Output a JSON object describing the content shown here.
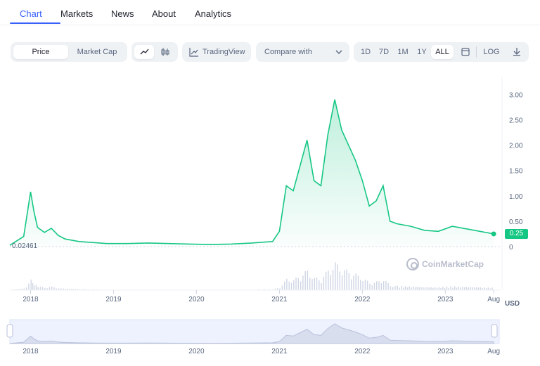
{
  "nav": {
    "tabs": [
      {
        "label": "Chart"
      },
      {
        "label": "Markets"
      },
      {
        "label": "News"
      },
      {
        "label": "About"
      },
      {
        "label": "Analytics"
      }
    ],
    "active": "Chart"
  },
  "toolbar": {
    "type_toggle": [
      "Price",
      "Market Cap"
    ],
    "type_active": "Price",
    "chart_style_icons": [
      "line-chart-icon",
      "candlestick-icon"
    ],
    "tradingview_label": "TradingView",
    "compare_label": "Compare with",
    "ranges": [
      "1D",
      "7D",
      "1M",
      "1Y",
      "ALL"
    ],
    "range_active": "ALL",
    "log_label": "LOG"
  },
  "chart_data": {
    "type": "area",
    "x": [
      "2017-10",
      "2017-12",
      "2018-01",
      "2018-01",
      "2018-02",
      "2018-03",
      "2018-04",
      "2018-05",
      "2018-06",
      "2018-08",
      "2018-10",
      "2018-12",
      "2019-03",
      "2019-06",
      "2019-09",
      "2019-12",
      "2020-03",
      "2020-06",
      "2020-09",
      "2020-12",
      "2021-01",
      "2021-02",
      "2021-03",
      "2021-04",
      "2021-05",
      "2021-06",
      "2021-07",
      "2021-08",
      "2021-09",
      "2021-10",
      "2021-11",
      "2021-12",
      "2022-01",
      "2022-02",
      "2022-03",
      "2022-04",
      "2022-05",
      "2022-06",
      "2022-08",
      "2022-10",
      "2022-12",
      "2023-02",
      "2023-04",
      "2023-06",
      "2023-08"
    ],
    "values": [
      0.02461,
      0.2,
      1.08,
      0.7,
      0.38,
      0.28,
      0.36,
      0.22,
      0.15,
      0.1,
      0.08,
      0.06,
      0.06,
      0.07,
      0.06,
      0.05,
      0.04,
      0.05,
      0.07,
      0.1,
      0.3,
      1.2,
      1.1,
      1.6,
      2.1,
      1.3,
      1.2,
      2.2,
      2.9,
      2.3,
      2.0,
      1.7,
      1.3,
      0.8,
      0.9,
      1.2,
      0.5,
      0.45,
      0.4,
      0.32,
      0.3,
      0.4,
      0.35,
      0.3,
      0.25
    ],
    "ylim": [
      0,
      3.2
    ],
    "y_ticks": [
      "0",
      "0.50",
      "1.00",
      "1.50",
      "2.00",
      "2.50",
      "3.00"
    ],
    "y_tick_values": [
      0,
      0.5,
      1,
      1.5,
      2,
      2.5,
      3
    ],
    "x_tick_labels": [
      "2018",
      "2019",
      "2020",
      "2021",
      "2022",
      "2023",
      "Aug"
    ],
    "x_tick_dates": [
      "2018-01",
      "2019-01",
      "2020-01",
      "2021-01",
      "2022-01",
      "2023-01",
      "2023-08"
    ],
    "x_range": [
      "2017-10",
      "2023-09"
    ],
    "start_price": "0.02461",
    "current_price": "0.25",
    "currency": "USD",
    "scale": "linear",
    "grid": false,
    "line_color": "#16c784",
    "volume_color": "#cfd6e4",
    "watermark": "CoinMarketCap"
  },
  "navigator": {
    "tick_labels": [
      "2018",
      "2019",
      "2020",
      "2021",
      "2022",
      "2023",
      "Aug"
    ]
  }
}
